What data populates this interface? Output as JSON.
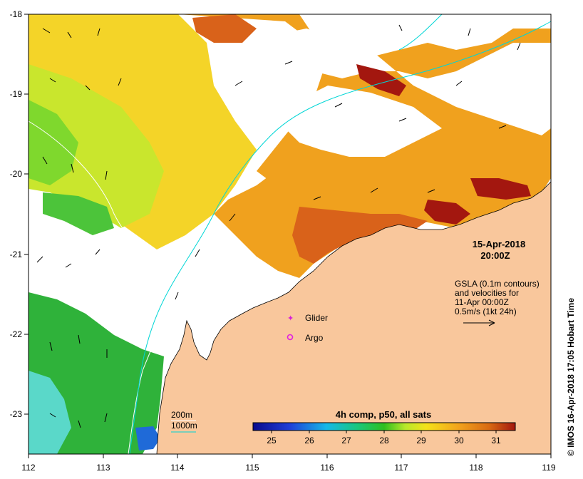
{
  "map": {
    "lon_range": [
      112,
      119
    ],
    "lat_range": [
      -23.5,
      -18
    ],
    "x_ticks": [
      "112",
      "113",
      "114",
      "115",
      "116",
      "117",
      "118",
      "119"
    ],
    "y_ticks": [
      "-18",
      "-19",
      "-20",
      "-21",
      "-22",
      "-23"
    ],
    "date": "15-Apr-2018",
    "time": "20:00Z",
    "credit": "© IMOS 16-Apr-2018 17:05 Hobart Time",
    "colors": {
      "land": "#f9c79c",
      "isobath_200": "#ffffff",
      "isobath_1000": "#00d6d6",
      "glider": "#d91cd9",
      "argo": "#e020e0"
    }
  },
  "legend_info": {
    "line1": "GSLA (0.1m contours)",
    "line2": "and velocities for",
    "line3": "11-Apr 00:00Z",
    "line4": "0.5m/s (1kt 24h)"
  },
  "markers": {
    "glider_label": "Glider",
    "argo_label": "Argo"
  },
  "isobaths": {
    "label_200": "200m",
    "label_1000": "1000m"
  },
  "colorbar": {
    "title": "4h comp, p50, all sats",
    "ticks": [
      "25",
      "26",
      "27",
      "28",
      "29",
      "30",
      "31"
    ],
    "range": [
      24.5,
      31.5
    ]
  }
}
